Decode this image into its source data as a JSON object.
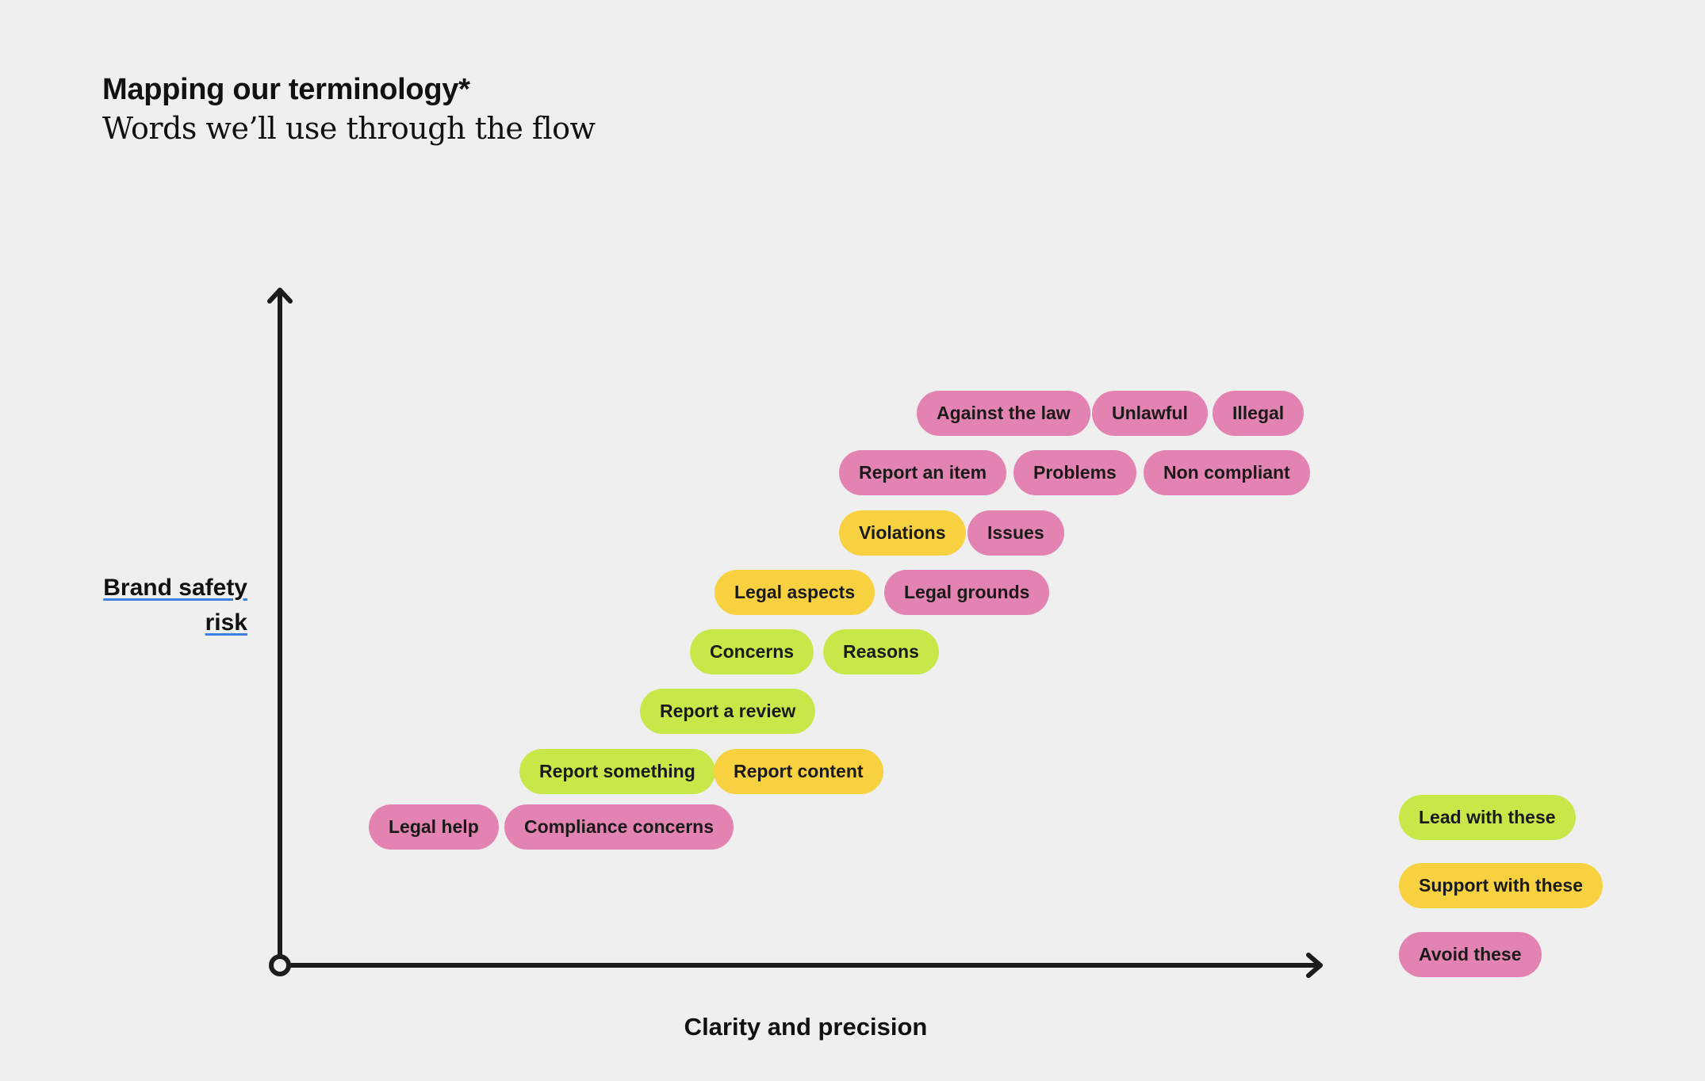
{
  "header": {
    "title": "Mapping our terminology*",
    "subtitle": "Words we’ll use through the flow"
  },
  "axes": {
    "y_label_line1": "Brand safety",
    "y_label_line2": "risk",
    "x_label": "Clarity and precision"
  },
  "colors": {
    "lead": "#c8e84a",
    "support": "#f8d140",
    "avoid": "#e283b1",
    "axis": "#1c1c1c",
    "underline": "#3b7fe0"
  },
  "terms": [
    {
      "label": "Against the law",
      "category": "avoid"
    },
    {
      "label": "Unlawful",
      "category": "avoid"
    },
    {
      "label": "Illegal",
      "category": "avoid"
    },
    {
      "label": "Report an item",
      "category": "avoid"
    },
    {
      "label": "Problems",
      "category": "avoid"
    },
    {
      "label": "Non compliant",
      "category": "avoid"
    },
    {
      "label": "Violations",
      "category": "support"
    },
    {
      "label": "Issues",
      "category": "avoid"
    },
    {
      "label": "Legal aspects",
      "category": "support"
    },
    {
      "label": "Legal grounds",
      "category": "avoid"
    },
    {
      "label": "Concerns",
      "category": "lead"
    },
    {
      "label": "Reasons",
      "category": "lead"
    },
    {
      "label": "Report a review",
      "category": "lead"
    },
    {
      "label": "Report something",
      "category": "lead"
    },
    {
      "label": "Report content",
      "category": "support"
    },
    {
      "label": "Legal help",
      "category": "avoid"
    },
    {
      "label": "Compliance concerns",
      "category": "avoid"
    }
  ],
  "legend": [
    {
      "label": "Lead with these",
      "category": "lead"
    },
    {
      "label": "Support with these",
      "category": "support"
    },
    {
      "label": "Avoid these",
      "category": "avoid"
    }
  ]
}
